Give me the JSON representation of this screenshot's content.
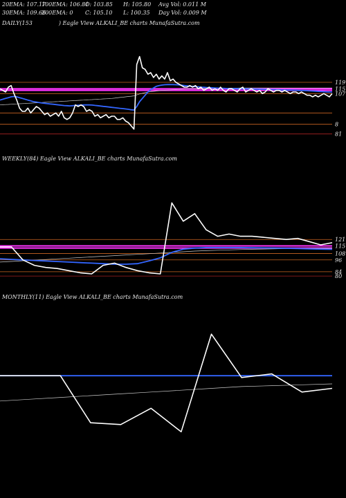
{
  "header": {
    "row1": [
      "20EMA: 107.17",
      "100EMA: 106.81",
      "O: 103.85",
      "H: 105.80",
      "Avg Vol: 0.011 M"
    ],
    "row2": [
      "30EMA: 109.66",
      "200EMA: 0",
      "C: 105.10",
      "L: 100.35",
      "Day Vol: 0.009 M"
    ]
  },
  "panels": {
    "daily": "DAILY(153",
    "daily_suffix": ") Eagle  View  ALKALI_BE charts MunafaSutra.com",
    "weekly": "WEEKLY(84) Eagle  View  ALKALI_BE charts MunafaSutra.com",
    "monthly": "MONTHLY(11) Eagle  View  ALKALI_BE charts MunafaSutra.com"
  },
  "colors": {
    "price": "#ffffff",
    "ema_blue": "#3366ff",
    "ema_thin": "#cccccc",
    "resistance": "#cc6622",
    "magenta": "#ff33ff",
    "support": "#aa2222"
  },
  "chart_data": [
    {
      "type": "line",
      "title": "DAILY(153",
      "x": [
        0,
        1,
        2,
        3,
        4,
        5,
        6,
        7,
        8,
        9,
        10,
        11,
        12,
        13,
        14,
        15,
        16,
        17,
        18,
        19,
        20,
        21,
        22,
        23,
        24,
        25,
        26,
        27,
        28,
        29,
        30,
        31,
        32,
        33,
        34,
        35,
        36,
        37,
        38,
        39,
        40,
        41,
        42,
        43,
        44,
        45,
        46,
        47,
        48,
        49,
        50,
        51,
        52,
        53,
        54,
        55,
        56,
        57,
        58,
        59,
        60,
        61,
        62,
        63,
        64,
        65,
        66,
        67,
        68,
        69,
        70,
        71,
        72,
        73,
        74,
        75,
        76,
        77,
        78,
        79,
        80,
        81,
        82,
        83,
        84,
        85,
        86,
        87,
        88,
        89,
        90,
        91,
        92,
        93,
        94,
        95,
        96,
        97,
        98,
        99,
        100,
        101,
        102,
        103,
        104,
        105,
        106,
        107,
        108,
        109,
        110,
        111,
        112,
        113,
        114,
        115,
        116,
        117,
        118,
        119
      ],
      "series": [
        {
          "values": [
            115,
            114,
            113,
            116,
            117,
            112,
            108,
            103,
            101,
            101,
            103,
            100,
            102,
            104,
            103,
            101,
            99,
            100,
            98,
            99,
            100,
            98,
            101,
            97,
            96,
            97,
            100,
            105,
            104,
            105,
            104,
            101,
            102,
            101,
            98,
            99,
            97,
            98,
            99,
            97,
            98,
            98,
            96,
            96,
            97,
            95,
            94,
            92,
            90,
            130,
            135,
            128,
            127,
            124,
            125,
            122,
            124,
            121,
            123,
            121,
            125,
            120,
            121,
            119,
            118,
            117,
            116,
            116,
            117,
            116,
            117,
            115,
            116,
            114,
            115,
            116,
            114,
            115,
            114,
            116,
            114,
            113,
            115,
            115,
            114,
            113,
            115,
            116,
            113,
            114,
            115,
            114,
            113,
            114,
            112,
            113,
            115,
            114,
            113,
            114,
            114,
            113,
            114,
            113,
            112,
            113,
            113,
            112,
            113,
            112,
            111,
            111,
            110,
            111,
            110,
            111,
            112,
            111,
            110,
            112
          ]
        },
        {
          "values": [
            108,
            108.5,
            109,
            109.5,
            110,
            110.2,
            110,
            109.5,
            109,
            108.5,
            108,
            107.5,
            107,
            106.8,
            106.5,
            106.2,
            106,
            105.8,
            105.6,
            105.4,
            105.2,
            105,
            104.8,
            104.6,
            104.5,
            104.4,
            104.5,
            104.7,
            104.8,
            104.9,
            105,
            105,
            105,
            104.9,
            104.7,
            104.5,
            104.3,
            104.1,
            103.9,
            103.7,
            103.5,
            103.3,
            103.1,
            102.9,
            102.7,
            102.5,
            102.3,
            102,
            101.8,
            104,
            107,
            109,
            111,
            113,
            114.5,
            115.5,
            116.5,
            117,
            117.3,
            117.5,
            117.6,
            117.6,
            117.6,
            117.5,
            117.4,
            117.2,
            117,
            116.8,
            116.6,
            116.5,
            116.3,
            116.2,
            116,
            115.9,
            115.8,
            115.7,
            115.6,
            115.5,
            115.4,
            115.3,
            115.3,
            115.2,
            115.2,
            115.1,
            115.1,
            115,
            115,
            115,
            115,
            114.9,
            114.9,
            114.8,
            114.8,
            114.7,
            114.7,
            114.6,
            114.6,
            114.5,
            114.5,
            114.4,
            114.4,
            114.3,
            114.3,
            114.2,
            114.2,
            114.1,
            114.1,
            114,
            114,
            113.9,
            113.8,
            113.7,
            113.6,
            113.5,
            113.4,
            113.3,
            113.2,
            113.1,
            113,
            113
          ]
        },
        {
          "values": [
            105,
            105.1,
            105.2,
            105.3,
            105.4,
            105.5,
            105.6,
            105.7,
            105.8,
            105.9,
            106,
            106.1,
            106.2,
            106.3,
            106.4,
            106.5,
            106.6,
            106.7,
            106.8,
            106.9,
            107,
            107.1,
            107.2,
            107.3,
            107.4,
            107.5,
            107.6,
            107.7,
            107.8,
            107.9,
            108,
            108.1,
            108.2,
            108.3,
            108.4,
            108.5,
            108.6,
            108.7,
            108.8,
            108.9,
            109,
            109.2,
            109.4,
            109.6,
            109.8,
            110,
            110.2,
            110.4,
            110.6,
            111.2,
            111.8,
            112.2,
            112.6,
            113,
            113.2,
            113.4,
            113.6,
            113.8,
            114,
            114.1,
            114.2,
            114.3,
            114.4,
            114.5,
            114.6,
            114.7,
            114.8,
            114.9,
            115,
            115,
            115,
            115.1,
            115.1,
            115.1,
            115.2,
            115.2,
            115.2,
            115.3,
            115.3,
            115.3,
            115.3,
            115.4,
            115.4,
            115.4,
            115.4,
            115.4,
            115.5,
            115.5,
            115.5,
            115.5,
            115.5,
            115.5,
            115.5,
            115.5,
            115.5,
            115.5,
            115.5,
            115.5,
            115.5,
            115.5,
            115.5,
            115.5,
            115.5,
            115.5,
            115.5,
            115.5,
            115.5,
            115.5,
            115.5,
            115.5,
            115.5,
            115.5,
            115.5,
            115.5,
            115.5,
            115.5,
            115.5,
            115.5,
            115.5,
            115.5
          ]
        }
      ],
      "hlines": [
        {
          "value": 119,
          "label": "119",
          "color": "#cc6622"
        },
        {
          "value": 115,
          "label": "115",
          "color": "#ff33ff"
        },
        {
          "value": 114,
          "label": "",
          "color": "#ff33ff"
        },
        {
          "value": 112,
          "label": "107",
          "color": "#cc6622"
        },
        {
          "value": 100,
          "label": "",
          "color": "#cc6622"
        },
        {
          "value": 93,
          "label": "8",
          "color": "#cc6622"
        },
        {
          "value": 87,
          "label": "81",
          "color": "#aa2222"
        }
      ],
      "ylim": [
        80,
        140
      ]
    },
    {
      "type": "line",
      "title": "WEEKLY(84) Eagle  View  ALKALI_BE charts MunafaSutra.com",
      "x": [
        0,
        1,
        2,
        3,
        4,
        5,
        6,
        7,
        8,
        9,
        10,
        11,
        12,
        13,
        14,
        15,
        16,
        17,
        18,
        19,
        20,
        21,
        22,
        23,
        24,
        25,
        26,
        27,
        28,
        29
      ],
      "series": [
        {
          "values": [
            114,
            114,
            102,
            97,
            95,
            94,
            92,
            90,
            89,
            97,
            99,
            95,
            92,
            90,
            89,
            155,
            138,
            145,
            130,
            124,
            126,
            124,
            124,
            123,
            122,
            121,
            122,
            119,
            116,
            118
          ]
        },
        {
          "values": [
            103,
            102.5,
            102,
            101.5,
            101,
            100.5,
            100,
            99.5,
            99,
            98.5,
            98,
            98,
            98.5,
            101,
            104,
            109,
            112,
            113,
            113.5,
            113.5,
            113.5,
            113.5,
            113.3,
            113.2,
            113,
            112.8,
            112.5,
            112.2,
            112,
            111.8
          ]
        },
        {
          "values": [
            100,
            100.6,
            101.2,
            101.8,
            102.4,
            103,
            103.6,
            104.2,
            104.8,
            105.4,
            106,
            106.6,
            107.2,
            107.8,
            108.4,
            109,
            109.6,
            110.2,
            110.6,
            111,
            111.3,
            111.6,
            111.9,
            112.1,
            112.3,
            112.5,
            112.6,
            112.7,
            112.8,
            112.9
          ]
        }
      ],
      "hlines": [
        {
          "value": 121,
          "label": "121",
          "color": "#cc6622"
        },
        {
          "value": 115,
          "label": "115",
          "color": "#ff33ff"
        },
        {
          "value": 113,
          "label": "",
          "color": "#ff33ff"
        },
        {
          "value": 108,
          "label": "108",
          "color": "#cc6622"
        },
        {
          "value": 102,
          "label": "96",
          "color": "#cc6622"
        },
        {
          "value": 91,
          "label": "84",
          "color": "#cc6622"
        },
        {
          "value": 87,
          "label": "80",
          "color": "#aa2222"
        }
      ],
      "ylim": [
        80,
        170
      ]
    },
    {
      "type": "line",
      "title": "MONTHLY(11) Eagle  View  ALKALI_BE charts MunafaSutra.com",
      "x": [
        0,
        1,
        2,
        3,
        4,
        5,
        6,
        7,
        8,
        9,
        10,
        11
      ],
      "series": [
        {
          "values": [
            117,
            117,
            117,
            91,
            90,
            99,
            86,
            140,
            116,
            118,
            108,
            110
          ]
        },
        {
          "values": [
            117,
            117,
            117,
            117,
            117,
            117,
            117,
            117,
            117,
            117,
            117,
            117
          ]
        },
        {
          "values": [
            103,
            104,
            105,
            106,
            107,
            108,
            109,
            110,
            111,
            111.5,
            112,
            112.5
          ]
        }
      ],
      "hlines": [],
      "ylim": [
        80,
        145
      ]
    }
  ]
}
